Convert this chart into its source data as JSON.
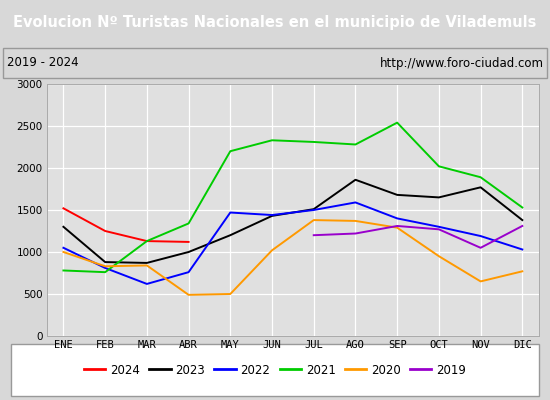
{
  "title": "Evolucion Nº Turistas Nacionales en el municipio de Vilademuls",
  "subtitle_left": "2019 - 2024",
  "subtitle_right": "http://www.foro-ciudad.com",
  "months": [
    "ENE",
    "FEB",
    "MAR",
    "ABR",
    "MAY",
    "JUN",
    "JUL",
    "AGO",
    "SEP",
    "OCT",
    "NOV",
    "DIC"
  ],
  "ylim": [
    0,
    3000
  ],
  "yticks": [
    0,
    500,
    1000,
    1500,
    2000,
    2500,
    3000
  ],
  "series": {
    "2024": {
      "color": "#ff0000",
      "data": [
        1520,
        1250,
        1130,
        1120,
        null,
        null,
        null,
        null,
        null,
        null,
        null,
        null
      ]
    },
    "2023": {
      "color": "#000000",
      "data": [
        1300,
        880,
        870,
        1000,
        1200,
        1430,
        1510,
        1860,
        1680,
        1650,
        1770,
        1380
      ]
    },
    "2022": {
      "color": "#0000ff",
      "data": [
        1050,
        810,
        620,
        760,
        1470,
        1440,
        1500,
        1590,
        1400,
        1300,
        1190,
        1030
      ]
    },
    "2021": {
      "color": "#00cc00",
      "data": [
        780,
        760,
        1130,
        1340,
        2200,
        2330,
        2310,
        2280,
        2540,
        2020,
        1890,
        1530
      ]
    },
    "2020": {
      "color": "#ff9900",
      "data": [
        1000,
        830,
        840,
        490,
        500,
        1020,
        1380,
        1370,
        1290,
        950,
        650,
        770
      ]
    },
    "2019": {
      "color": "#9900cc",
      "data": [
        null,
        null,
        null,
        null,
        null,
        null,
        1200,
        1220,
        1310,
        1270,
        1050,
        1310
      ]
    }
  },
  "title_bg_color": "#4472c4",
  "title_text_color": "#ffffff",
  "plot_bg_color": "#e0e0e0",
  "grid_color": "#ffffff",
  "outer_bg_color": "#d8d8d8",
  "legend_order": [
    "2024",
    "2023",
    "2022",
    "2021",
    "2020",
    "2019"
  ],
  "title_fontsize": 10.5,
  "subtitle_fontsize": 8.5,
  "tick_fontsize": 7.5,
  "legend_fontsize": 8.5
}
